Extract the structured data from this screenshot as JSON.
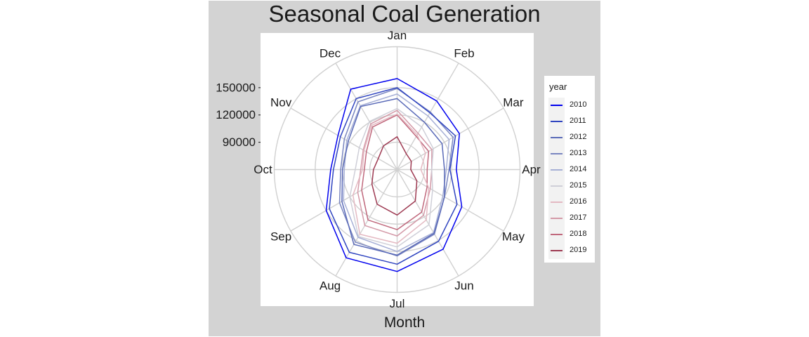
{
  "chart_data": {
    "type": "line",
    "coord": "polar",
    "title": "Seasonal Coal Generation",
    "xlabel": "Month",
    "ylabel": "",
    "categories": [
      "Jan",
      "Feb",
      "Mar",
      "Apr",
      "May",
      "Jun",
      "Jul",
      "Aug",
      "Sep",
      "Oct",
      "Nov",
      "Dec"
    ],
    "y_ticks": [
      90000,
      120000,
      150000
    ],
    "y_tick_labels": [
      "90000",
      "120000",
      "150000"
    ],
    "ylim": [
      60000,
      195000
    ],
    "grid": true,
    "legend": {
      "title": "year",
      "position": "right"
    },
    "series": [
      {
        "name": "2010",
        "color": "#0000ee",
        "values": [
          160000,
          147000,
          139000,
          125000,
          142000,
          161000,
          172000,
          172000,
          150000,
          133000,
          135000,
          162000
        ]
      },
      {
        "name": "2011",
        "color": "#3045c0",
        "values": [
          150000,
          132000,
          134000,
          118000,
          136000,
          151000,
          164000,
          165000,
          146000,
          130000,
          132000,
          150000
        ]
      },
      {
        "name": "2012",
        "color": "#5a6ab8",
        "values": [
          138000,
          120000,
          117000,
          112000,
          120000,
          141000,
          154000,
          155000,
          130000,
          120000,
          122000,
          140000
        ]
      },
      {
        "name": "2013",
        "color": "#7a86c0",
        "values": [
          149000,
          133000,
          131000,
          117000,
          120000,
          142000,
          155000,
          152000,
          133000,
          122000,
          127000,
          146000
        ]
      },
      {
        "name": "2014",
        "color": "#a7b0d6",
        "values": [
          143000,
          128000,
          126000,
          114000,
          118000,
          140000,
          150000,
          146000,
          128000,
          118000,
          124000,
          141000
        ]
      },
      {
        "name": "2015",
        "color": "#cfcfd8",
        "values": [
          127000,
          114000,
          106000,
          98000,
          105000,
          130000,
          145000,
          145000,
          120000,
          106000,
          108000,
          121000
        ]
      },
      {
        "name": "2016",
        "color": "#e4b9c2",
        "values": [
          121000,
          104000,
          96000,
          86000,
          100000,
          124000,
          141000,
          142000,
          116000,
          98000,
          102000,
          116000
        ]
      },
      {
        "name": "2017",
        "color": "#d49aa8",
        "values": [
          125000,
          106000,
          104000,
          98000,
          102000,
          118000,
          133000,
          131000,
          110000,
          100000,
          103000,
          118000
        ]
      },
      {
        "name": "2018",
        "color": "#c0687c",
        "values": [
          120000,
          102000,
          100000,
          93000,
          98000,
          114000,
          126000,
          124000,
          105000,
          96000,
          99000,
          114000
        ]
      },
      {
        "name": "2019",
        "color": "#9e3a52",
        "values": [
          96000,
          80000,
          78000,
          75000,
          85000,
          100000,
          110000,
          104000,
          92000,
          86000,
          84000,
          90000
        ]
      }
    ]
  }
}
